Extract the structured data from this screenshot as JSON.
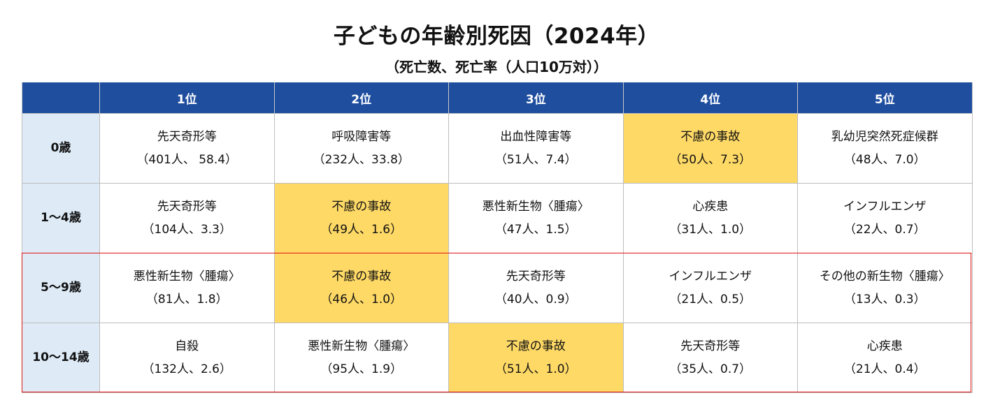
{
  "title": "子どもの年齢別死因（2024年）",
  "subtitle": "（死亡数、死亡率（人口10万対））",
  "colors": {
    "header_bg": "#1f4e9f",
    "age_bg": "#deebf7",
    "highlight": "#fed966",
    "box_border": "#e01010"
  },
  "table": {
    "headers": [
      "",
      "1位",
      "2位",
      "3位",
      "4位",
      "5位"
    ],
    "rows": [
      {
        "age": "0歳",
        "cells": [
          {
            "cause": "先天奇形等",
            "stat": "（401人、 58.4）",
            "highlight": false
          },
          {
            "cause": "呼吸障害等",
            "stat": "（232人、33.8）",
            "highlight": false
          },
          {
            "cause": "出血性障害等",
            "stat": "（51人、7.4）",
            "highlight": false
          },
          {
            "cause": "不慮の事故",
            "stat": "（50人、7.3）",
            "highlight": true
          },
          {
            "cause": "乳幼児突然死症候群",
            "stat": "（48人、7.0）",
            "highlight": false
          }
        ]
      },
      {
        "age": "1～4歳",
        "cells": [
          {
            "cause": "先天奇形等",
            "stat": "（104人、3.3）",
            "highlight": false
          },
          {
            "cause": "不慮の事故",
            "stat": "（49人、1.6）",
            "highlight": true
          },
          {
            "cause": "悪性新生物〈腫瘍〉",
            "stat": "（47人、1.5）",
            "highlight": false
          },
          {
            "cause": "心疾患",
            "stat": "（31人、1.0）",
            "highlight": false
          },
          {
            "cause": "インフルエンザ",
            "stat": "（22人、0.7）",
            "highlight": false
          }
        ]
      },
      {
        "age": "5～9歳",
        "cells": [
          {
            "cause": "悪性新生物〈腫瘍〉",
            "stat": "（81人、1.8）",
            "highlight": false
          },
          {
            "cause": "不慮の事故",
            "stat": "（46人、1.0）",
            "highlight": true
          },
          {
            "cause": "先天奇形等",
            "stat": "（40人、0.9）",
            "highlight": false
          },
          {
            "cause": "インフルエンザ",
            "stat": "（21人、0.5）",
            "highlight": false
          },
          {
            "cause": "その他の新生物〈腫瘍〉",
            "stat": "（13人、0.3）",
            "highlight": false
          }
        ]
      },
      {
        "age": "10～14歳",
        "cells": [
          {
            "cause": "自殺",
            "stat": "（132人、2.6）",
            "highlight": false
          },
          {
            "cause": "悪性新生物〈腫瘍〉",
            "stat": "（95人、1.9）",
            "highlight": false
          },
          {
            "cause": "不慮の事故",
            "stat": "（51人、1.0）",
            "highlight": true
          },
          {
            "cause": "先天奇形等",
            "stat": "（35人、0.7）",
            "highlight": false
          },
          {
            "cause": "心疾患",
            "stat": "（21人、0.4）",
            "highlight": false
          }
        ]
      }
    ]
  }
}
